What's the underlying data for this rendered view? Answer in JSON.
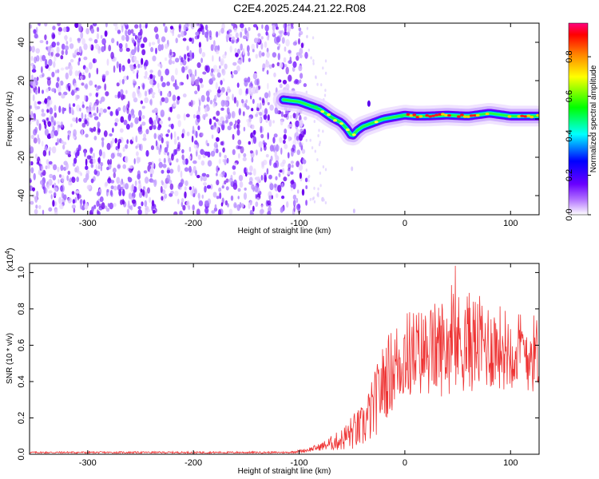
{
  "title": "C2E4.2025.244.21.22.R08",
  "chart_data": [
    {
      "type": "heatmap",
      "name": "spectrogram",
      "xlabel": "Height of straight line (km)",
      "ylabel": "Frequency (Hz)",
      "xlim": [
        -355,
        127
      ],
      "ylim": [
        -50,
        50
      ],
      "xticks": [
        -300,
        -200,
        -100,
        0,
        100
      ],
      "yticks": [
        -40,
        -20,
        0,
        20,
        40
      ],
      "noise_region_x": [
        -355,
        -93
      ],
      "ridge": {
        "x": [
          -115,
          -100,
          -90,
          -80,
          -70,
          -60,
          -55,
          -50,
          -45,
          -40,
          -30,
          -20,
          -10,
          0,
          10,
          20,
          40,
          60,
          80,
          100,
          127
        ],
        "y": [
          10,
          9,
          7,
          5,
          1,
          -2,
          -5,
          -9,
          -6,
          -4,
          -2,
          0,
          1,
          2,
          1.5,
          1.5,
          2,
          1.5,
          3,
          1.5,
          1.5
        ]
      },
      "colorbar": {
        "label": "Normalized spectral amplitude",
        "ticks": [
          0.0,
          0.2,
          0.4,
          0.6,
          0.8
        ],
        "range": [
          0.0,
          0.97
        ],
        "colors": [
          "#ffffff",
          "#7b00ff",
          "#0000ff",
          "#00ffff",
          "#00ff00",
          "#ffff00",
          "#ff8000",
          "#ff0000",
          "#ff0080"
        ]
      }
    },
    {
      "type": "line",
      "name": "snr",
      "xlabel": "Height of straight line (km)",
      "ylabel": "SNR (10 * v/v)",
      "scale_note": "(x10",
      "scale_exp": "4",
      "scale_close": ")",
      "xlim": [
        -355,
        127
      ],
      "ylim": [
        0,
        1.05
      ],
      "xticks": [
        -300,
        -200,
        -100,
        0,
        100
      ],
      "yticks": [
        "0.0",
        "0.2",
        "0.4",
        "0.6",
        "0.8",
        "1.0"
      ],
      "color": "#ee3333",
      "envelope": {
        "x": [
          -355,
          -110,
          -95,
          -80,
          -70,
          -60,
          -50,
          -40,
          -30,
          -20,
          -10,
          0,
          20,
          40,
          60,
          80,
          100,
          127
        ],
        "mean": [
          0.01,
          0.01,
          0.02,
          0.04,
          0.06,
          0.08,
          0.12,
          0.15,
          0.25,
          0.4,
          0.48,
          0.55,
          0.56,
          0.6,
          0.62,
          0.6,
          0.58,
          0.55
        ],
        "amp": [
          0.005,
          0.005,
          0.01,
          0.02,
          0.04,
          0.06,
          0.1,
          0.12,
          0.18,
          0.22,
          0.24,
          0.25,
          0.25,
          0.28,
          0.28,
          0.25,
          0.22,
          0.22
        ]
      }
    }
  ]
}
